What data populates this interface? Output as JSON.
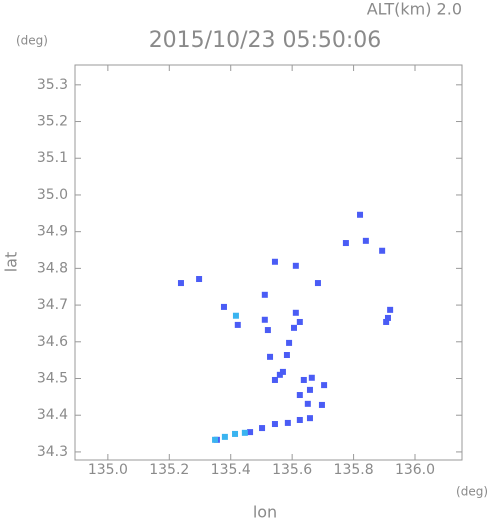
{
  "chart_data": {
    "type": "scatter",
    "title": "2015/10/23 05:50:06",
    "subtitle": "ALT(km) 2.0",
    "y_unit": "(deg)",
    "x_unit": "(deg)",
    "x_label": "lon",
    "y_label": "lat",
    "xlim": [
      134.893,
      136.153
    ],
    "ylim": [
      34.278,
      35.354
    ],
    "xticks": [
      {
        "value": 135,
        "label": "135.0"
      },
      135.2,
      135.4,
      135.6,
      135.8,
      {
        "value": 136,
        "label": "136.0"
      }
    ],
    "yticks": [
      34.3,
      34.4,
      34.5,
      34.6,
      34.7,
      34.8,
      34.9,
      {
        "value": 35,
        "label": "35.0"
      },
      35.1,
      35.2,
      35.3
    ],
    "series": [
      {
        "color": "#4a5cf5",
        "x": [
          135.238,
          135.297,
          135.378,
          135.423,
          135.511,
          135.521,
          135.511,
          135.528,
          135.583,
          135.59,
          135.56,
          135.544,
          135.57,
          135.606,
          135.625,
          135.612,
          135.612,
          135.544,
          135.638,
          135.625,
          135.658,
          135.651,
          135.697,
          135.664,
          135.704,
          135.775,
          135.821,
          135.84,
          135.893,
          135.919,
          135.912,
          135.906,
          135.684,
          135.463,
          135.502,
          135.544,
          135.586,
          135.625,
          135.658,
          135.355
        ],
        "values": [
          34.76,
          34.771,
          34.695,
          34.646,
          34.66,
          34.632,
          34.728,
          34.559,
          34.564,
          34.597,
          34.51,
          34.496,
          34.518,
          34.638,
          34.654,
          34.679,
          34.807,
          34.818,
          34.496,
          34.455,
          34.469,
          34.431,
          34.428,
          34.502,
          34.482,
          34.869,
          34.946,
          34.875,
          34.848,
          34.687,
          34.665,
          34.654,
          34.76,
          34.354,
          34.365,
          34.376,
          34.379,
          34.387,
          34.392,
          34.333
        ]
      },
      {
        "color": "#3ab4f0",
        "x": [
          135.417,
          135.349,
          135.381,
          135.414,
          135.446
        ],
        "values": [
          34.671,
          34.333,
          34.341,
          34.349,
          34.352
        ]
      }
    ]
  }
}
